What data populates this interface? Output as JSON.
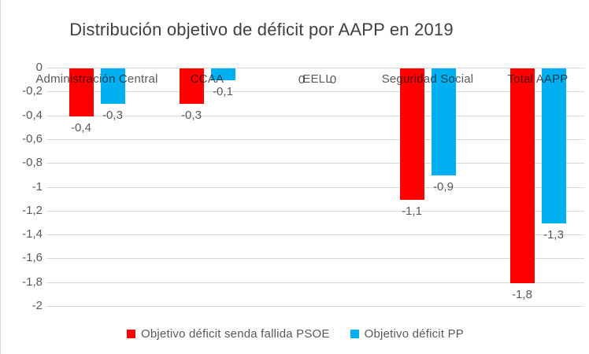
{
  "title": "Distribución objetivo de déficit por AAPP en 2019",
  "colors": {
    "psoe_red": "#FF0000",
    "pp_blue": "#00B0F0",
    "gridline": "#D9D9D9",
    "title_text": "#404040",
    "label_text": "#595959",
    "background": "#FFFFFF"
  },
  "legend": {
    "items": [
      {
        "label": "Objetivo déficit senda fallida PSOE",
        "color": "#FF0000"
      },
      {
        "label": "Objetivo déficit PP",
        "color": "#00B0F0"
      }
    ]
  },
  "chart_data": {
    "type": "bar",
    "title": "Distribución objetivo de déficit por AAPP en 2019",
    "categories": [
      "Administración Central",
      "CCAA",
      "EELL",
      "Seguridad Social",
      "Total AAPP"
    ],
    "series": [
      {
        "name": "Objetivo déficit senda fallida PSOE",
        "color": "#FF0000",
        "values": [
          -0.4,
          -0.3,
          0,
          -1.1,
          -1.8
        ],
        "labels": [
          "-0,4",
          "-0,3",
          "0",
          "-1,1",
          "-1,8"
        ]
      },
      {
        "name": "Objetivo déficit PP",
        "color": "#00B0F0",
        "values": [
          -0.3,
          -0.1,
          0,
          -0.9,
          -1.3
        ],
        "labels": [
          "-0,3",
          "-0,1",
          "0",
          "-0,9",
          "-1,3"
        ]
      }
    ],
    "xlabel": "",
    "ylabel": "",
    "y_axis": {
      "min": -2,
      "max": 0,
      "step": -0.2,
      "tick_labels": [
        "0",
        "-0,2",
        "-0,4",
        "-0,6",
        "-0,8",
        "-1",
        "-1,2",
        "-1,4",
        "-1,6",
        "-1,8",
        "-2"
      ]
    },
    "grid": true,
    "legend_position": "bottom",
    "data_labels_visible": true
  }
}
